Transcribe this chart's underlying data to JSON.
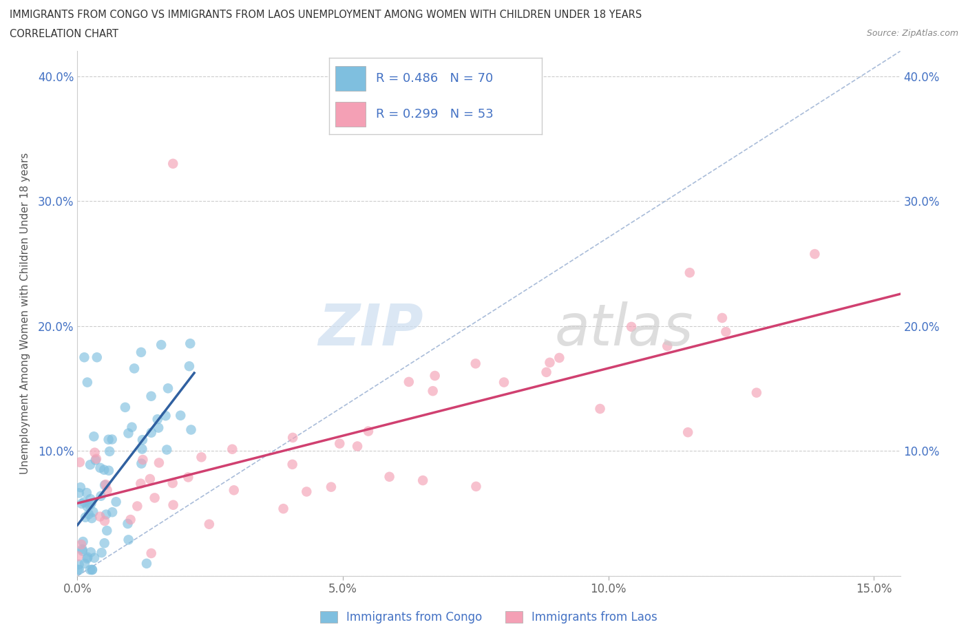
{
  "title_line1": "IMMIGRANTS FROM CONGO VS IMMIGRANTS FROM LAOS UNEMPLOYMENT AMONG WOMEN WITH CHILDREN UNDER 18 YEARS",
  "title_line2": "CORRELATION CHART",
  "source_text": "Source: ZipAtlas.com",
  "ylabel": "Unemployment Among Women with Children Under 18 years",
  "xlim": [
    0.0,
    0.155
  ],
  "ylim": [
    0.0,
    0.42
  ],
  "xtick_vals": [
    0.0,
    0.05,
    0.1,
    0.15
  ],
  "xticklabels": [
    "0.0%",
    "5.0%",
    "10.0%",
    "15.0%"
  ],
  "ytick_vals": [
    0.0,
    0.1,
    0.2,
    0.3,
    0.4
  ],
  "yticklabels_left": [
    "",
    "10.0%",
    "20.0%",
    "30.0%",
    "40.0%"
  ],
  "yticklabels_right": [
    "",
    "10.0%",
    "20.0%",
    "30.0%",
    "40.0%"
  ],
  "congo_color": "#7fbfdf",
  "laos_color": "#f4a0b5",
  "congo_line_color": "#3060a0",
  "laos_line_color": "#d04070",
  "diagonal_color": "#7090c0",
  "R_congo": 0.486,
  "N_congo": 70,
  "R_laos": 0.299,
  "N_laos": 53,
  "legend_label_congo": "Immigrants from Congo",
  "legend_label_laos": "Immigrants from Laos"
}
